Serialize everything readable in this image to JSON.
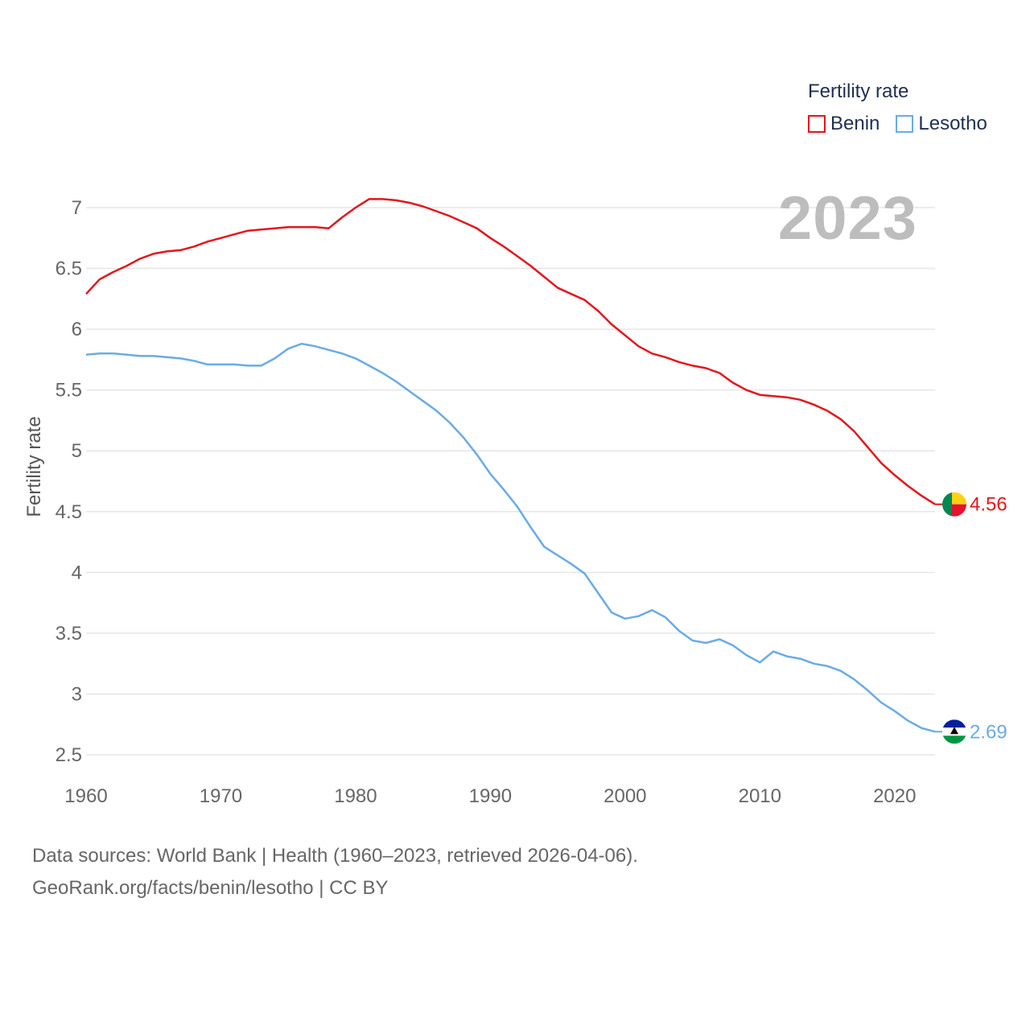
{
  "legend": {
    "title": "Fertility rate",
    "items": [
      {
        "label": "Benin",
        "color": "#e3161c"
      },
      {
        "label": "Lesotho",
        "color": "#6aabe6"
      }
    ]
  },
  "year_label": "2023",
  "footer": {
    "line1": "Data sources: World Bank | Health (1960–2023, retrieved 2026-04-06).",
    "line2": "GeoRank.org/facts/benin/lesotho | CC BY"
  },
  "chart_data": {
    "type": "line",
    "title": "Fertility rate",
    "xlabel": "",
    "ylabel": "Fertility rate",
    "xlim": [
      1960,
      2023
    ],
    "ylim": [
      2.5,
      7.2
    ],
    "x_ticks": [
      "1960",
      "1970",
      "1980",
      "1990",
      "2000",
      "2010",
      "2020"
    ],
    "y_ticks": [
      "2.5",
      "3",
      "3.5",
      "4",
      "4.5",
      "5",
      "5.5",
      "6",
      "6.5",
      "7"
    ],
    "grid": true,
    "legend_position": "top-right",
    "x": [
      1960,
      1961,
      1962,
      1963,
      1964,
      1965,
      1966,
      1967,
      1968,
      1969,
      1970,
      1971,
      1972,
      1973,
      1974,
      1975,
      1976,
      1977,
      1978,
      1979,
      1980,
      1981,
      1982,
      1983,
      1984,
      1985,
      1986,
      1987,
      1988,
      1989,
      1990,
      1991,
      1992,
      1993,
      1994,
      1995,
      1996,
      1997,
      1998,
      1999,
      2000,
      2001,
      2002,
      2003,
      2004,
      2005,
      2006,
      2007,
      2008,
      2009,
      2010,
      2011,
      2012,
      2013,
      2014,
      2015,
      2016,
      2017,
      2018,
      2019,
      2020,
      2021,
      2022,
      2023
    ],
    "series": [
      {
        "name": "Benin",
        "color": "#e3161c",
        "end_label": "4.56",
        "values": [
          6.29,
          6.41,
          6.47,
          6.52,
          6.58,
          6.62,
          6.64,
          6.65,
          6.68,
          6.72,
          6.75,
          6.78,
          6.81,
          6.82,
          6.83,
          6.84,
          6.84,
          6.84,
          6.83,
          6.92,
          7.0,
          7.07,
          7.07,
          7.06,
          7.04,
          7.01,
          6.97,
          6.93,
          6.88,
          6.83,
          6.75,
          6.68,
          6.6,
          6.52,
          6.43,
          6.34,
          6.29,
          6.24,
          6.15,
          6.04,
          5.95,
          5.86,
          5.8,
          5.77,
          5.73,
          5.7,
          5.68,
          5.64,
          5.56,
          5.5,
          5.46,
          5.45,
          5.44,
          5.42,
          5.38,
          5.33,
          5.26,
          5.16,
          5.03,
          4.9,
          4.8,
          4.71,
          4.63,
          4.56
        ]
      },
      {
        "name": "Lesotho",
        "color": "#6aabe6",
        "end_label": "2.69",
        "values": [
          5.79,
          5.8,
          5.8,
          5.79,
          5.78,
          5.78,
          5.77,
          5.76,
          5.74,
          5.71,
          5.71,
          5.71,
          5.7,
          5.7,
          5.76,
          5.84,
          5.88,
          5.86,
          5.83,
          5.8,
          5.76,
          5.7,
          5.64,
          5.57,
          5.49,
          5.41,
          5.33,
          5.23,
          5.11,
          4.97,
          4.81,
          4.68,
          4.54,
          4.37,
          4.21,
          4.14,
          4.07,
          3.99,
          3.83,
          3.67,
          3.62,
          3.64,
          3.69,
          3.63,
          3.52,
          3.44,
          3.42,
          3.45,
          3.4,
          3.32,
          3.26,
          3.35,
          3.31,
          3.29,
          3.25,
          3.23,
          3.19,
          3.12,
          3.03,
          2.93,
          2.86,
          2.78,
          2.72,
          2.69
        ]
      }
    ]
  }
}
